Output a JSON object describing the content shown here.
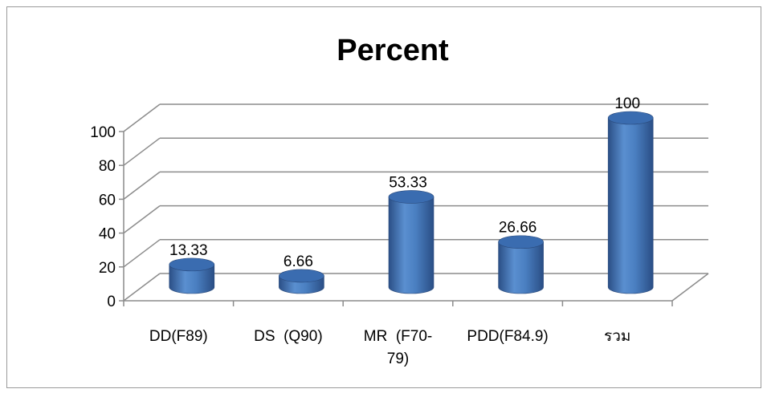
{
  "chart_data": {
    "type": "bar",
    "title": "Percent",
    "xlabel": "",
    "ylabel": "",
    "categories": [
      "DD(F89)",
      "DS  (Q90)",
      "MR  (F70-79)",
      "PDD(F84.9)",
      "รวม"
    ],
    "category_lines": [
      [
        "DD(F89)"
      ],
      [
        "DS  (Q90)"
      ],
      [
        "MR  (F70-",
        "79)"
      ],
      [
        "PDD(F84.9)"
      ],
      [
        "รวม"
      ]
    ],
    "values": [
      13.33,
      6.66,
      53.33,
      26.66,
      100
    ],
    "value_labels": [
      "13.33",
      "6.66",
      "53.33",
      "26.66",
      "100"
    ],
    "ylim": [
      0,
      100
    ],
    "yticks": [
      "0",
      "20",
      "40",
      "60",
      "80",
      "100"
    ],
    "grid": true,
    "bar_style": "3d-cylinder",
    "colors": {
      "bar": "#4f81bd",
      "bar_dark": "#2c5590",
      "bar_top": "#3a6cb0",
      "grid": "#8c8c8c"
    }
  }
}
